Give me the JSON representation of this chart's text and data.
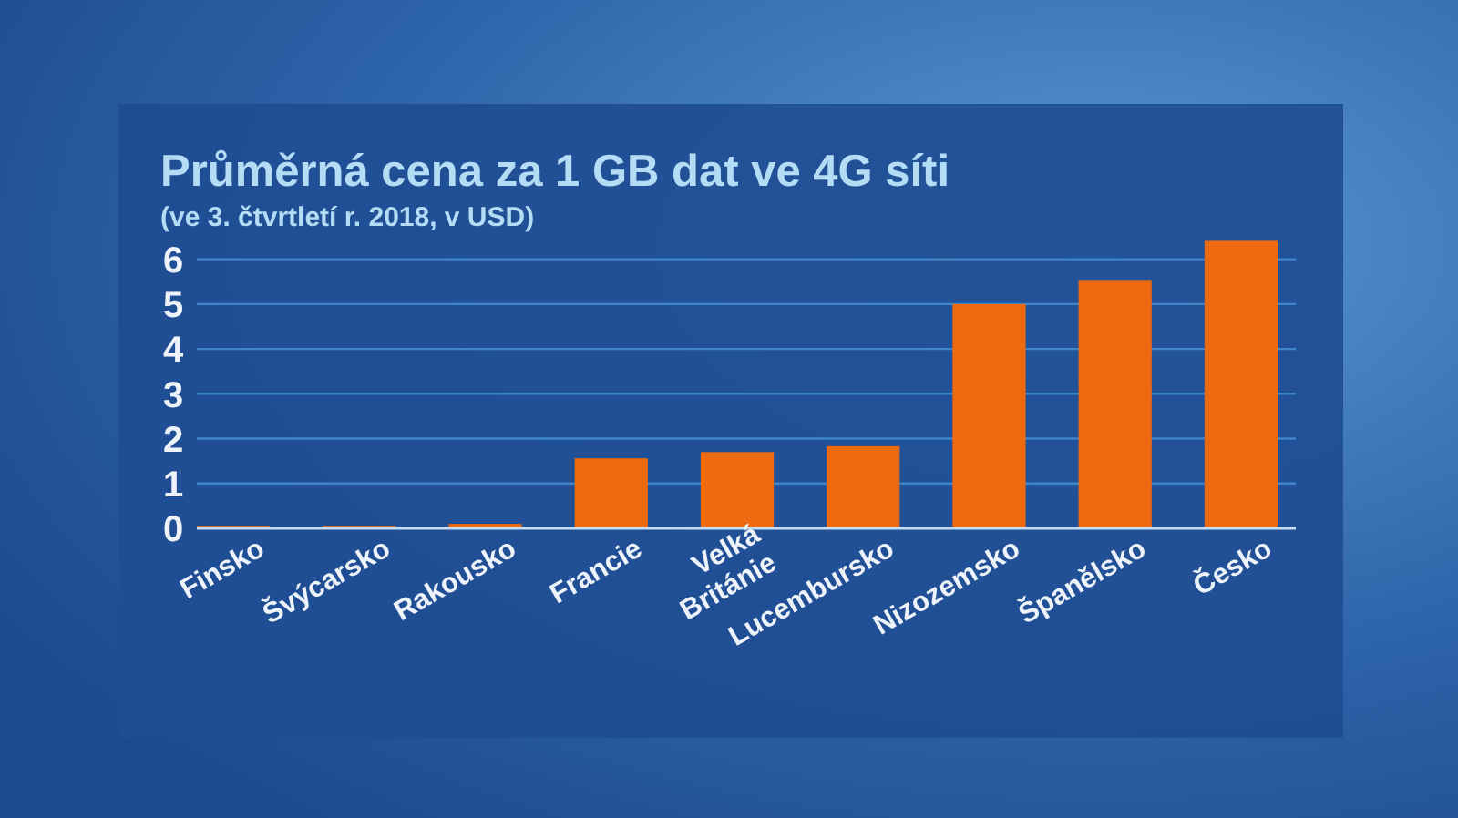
{
  "chart_data": {
    "type": "bar",
    "title": "Průměrná cena za 1 GB dat ve 4G síti",
    "subtitle": "(ve 3. čtvrtletí r. 2018, v USD)",
    "categories": [
      "Finsko",
      "Švýcarsko",
      "Rakousko",
      "Francie",
      "Velká Británie",
      "Lucembursko",
      "Nizozemsko",
      "Španělsko",
      "Česko"
    ],
    "values": [
      0.06,
      0.06,
      0.1,
      1.56,
      1.7,
      1.83,
      5.0,
      5.54,
      6.41
    ],
    "color": "#ee6a10",
    "ylim": [
      0,
      6.5
    ],
    "yticks": [
      0,
      1,
      2,
      3,
      4,
      5,
      6
    ],
    "grid": "y"
  }
}
